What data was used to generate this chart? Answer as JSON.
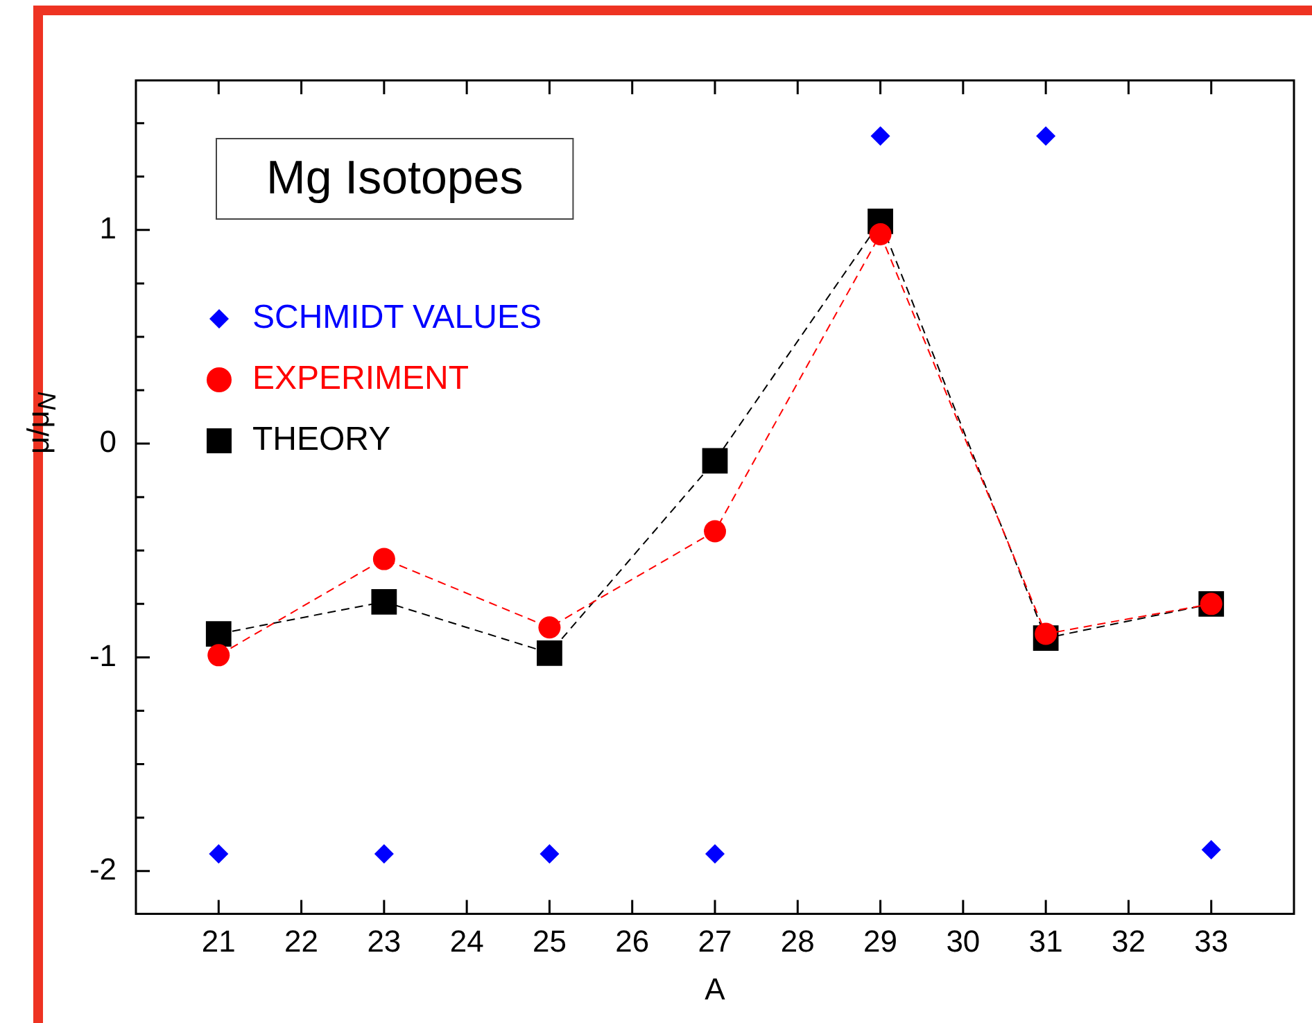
{
  "chart_data": {
    "type": "scatter",
    "title": "Mg Isotopes",
    "xlabel": "A",
    "ylabel": "μ/μ$_{N}$",
    "x": [
      21,
      23,
      25,
      27,
      29,
      31,
      33
    ],
    "series": [
      {
        "name": "SCHMIDT VALUES",
        "color": "#0000ff",
        "marker": "diamond",
        "values": [
          -1.92,
          -1.92,
          -1.92,
          -1.92,
          1.44,
          1.44,
          -1.9
        ]
      },
      {
        "name": "EXPERIMENT",
        "color": "#ff0000",
        "type": "line",
        "marker": "circle",
        "line_style": "dashed",
        "values": [
          -0.99,
          -0.54,
          -0.86,
          -0.41,
          0.98,
          -0.89,
          -0.75
        ]
      },
      {
        "name": "THEORY",
        "color": "#000000",
        "type": "line",
        "marker": "square",
        "line_style": "dashed",
        "values": [
          -0.89,
          -0.74,
          -0.98,
          -0.08,
          1.04,
          -0.91,
          -0.75
        ]
      }
    ],
    "xlim": [
      20,
      34
    ],
    "xticks": [
      21,
      22,
      23,
      24,
      25,
      26,
      27,
      28,
      29,
      30,
      31,
      32,
      33
    ],
    "ylim": [
      -2.2,
      1.7
    ],
    "yticks": [
      -2,
      {
        "value": -1.75,
        "label": null
      },
      {
        "value": -1.5,
        "label": null
      },
      {
        "value": -1.25,
        "label": null
      },
      -1,
      {
        "value": -0.75,
        "label": null
      },
      {
        "value": -0.5,
        "label": null
      },
      {
        "value": -0.25,
        "label": null
      },
      0,
      {
        "value": 0.25,
        "label": null
      },
      {
        "value": 0.5,
        "label": null
      },
      {
        "value": 0.75,
        "label": null
      },
      1,
      {
        "value": 1.25,
        "label": null
      },
      {
        "value": 1.5,
        "label": null
      }
    ],
    "grid": false,
    "legend": "top left"
  }
}
